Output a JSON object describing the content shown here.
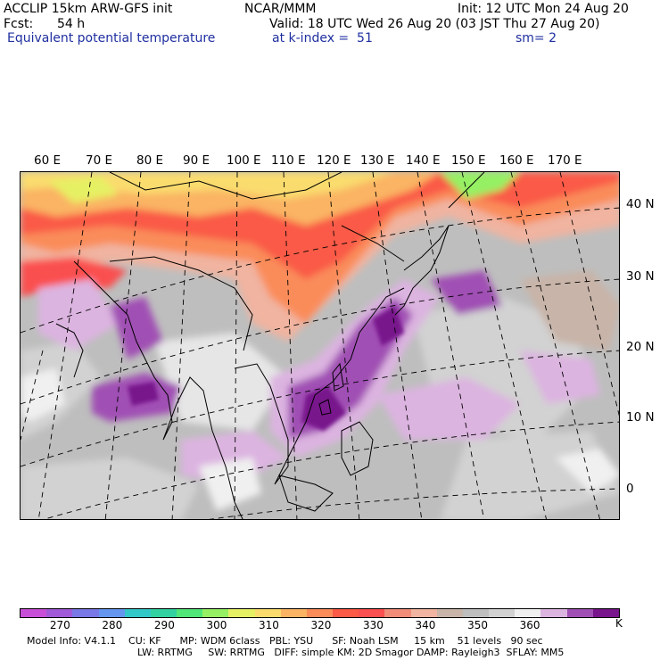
{
  "header": {
    "model": "ACCLIP 15km ARW-GFS init",
    "center": "NCAR/MMM",
    "init": "Init: 12 UTC Mon 24 Aug 20",
    "fcst_label": "Fcst:",
    "fcst_value": "54 h",
    "valid": "Valid: 18 UTC Wed 26 Aug 20 (03 JST Thu 27 Aug 20)",
    "field": "Equivalent potential temperature",
    "level": "at k-index =  51",
    "smooth": "sm= 2"
  },
  "map": {
    "lon_labels": [
      "60 E",
      "70 E",
      "80 E",
      "90 E",
      "100 E",
      "110 E",
      "120 E",
      "130 E",
      "140 E",
      "150 E",
      "160 E",
      "170 E"
    ],
    "lat_labels": [
      "40 N",
      "30 N",
      "20 N",
      "10 N",
      "0"
    ]
  },
  "colorbar": {
    "colors": [
      "#c850d8",
      "#a05ad8",
      "#7878e6",
      "#6496f0",
      "#32c8c8",
      "#32d2a0",
      "#50e678",
      "#96f064",
      "#e6f064",
      "#fadc6e",
      "#fab464",
      "#fa8c5a",
      "#fa5a46",
      "#fa5050",
      "#f08c78",
      "#f0b4a0",
      "#c8b4a8",
      "#bebebe",
      "#d2d2d2",
      "#f0f0f0",
      "#dcb4e0",
      "#a050b4",
      "#78148c"
    ],
    "ticks": [
      "270",
      "280",
      "290",
      "300",
      "310",
      "320",
      "330",
      "340",
      "350",
      "360"
    ],
    "unit": "K"
  },
  "footer": {
    "line1": "Model Info: V4.1.1    CU: KF      MP: WDM 6class   PBL: YSU      SF: Noah LSM     15 km    51 levels   90 sec",
    "line2": "LW: RRTMG     SW: RRTMG   DIFF: simple KM: 2D Smagor DAMP: Rayleigh3  SFLAY: MM5"
  }
}
